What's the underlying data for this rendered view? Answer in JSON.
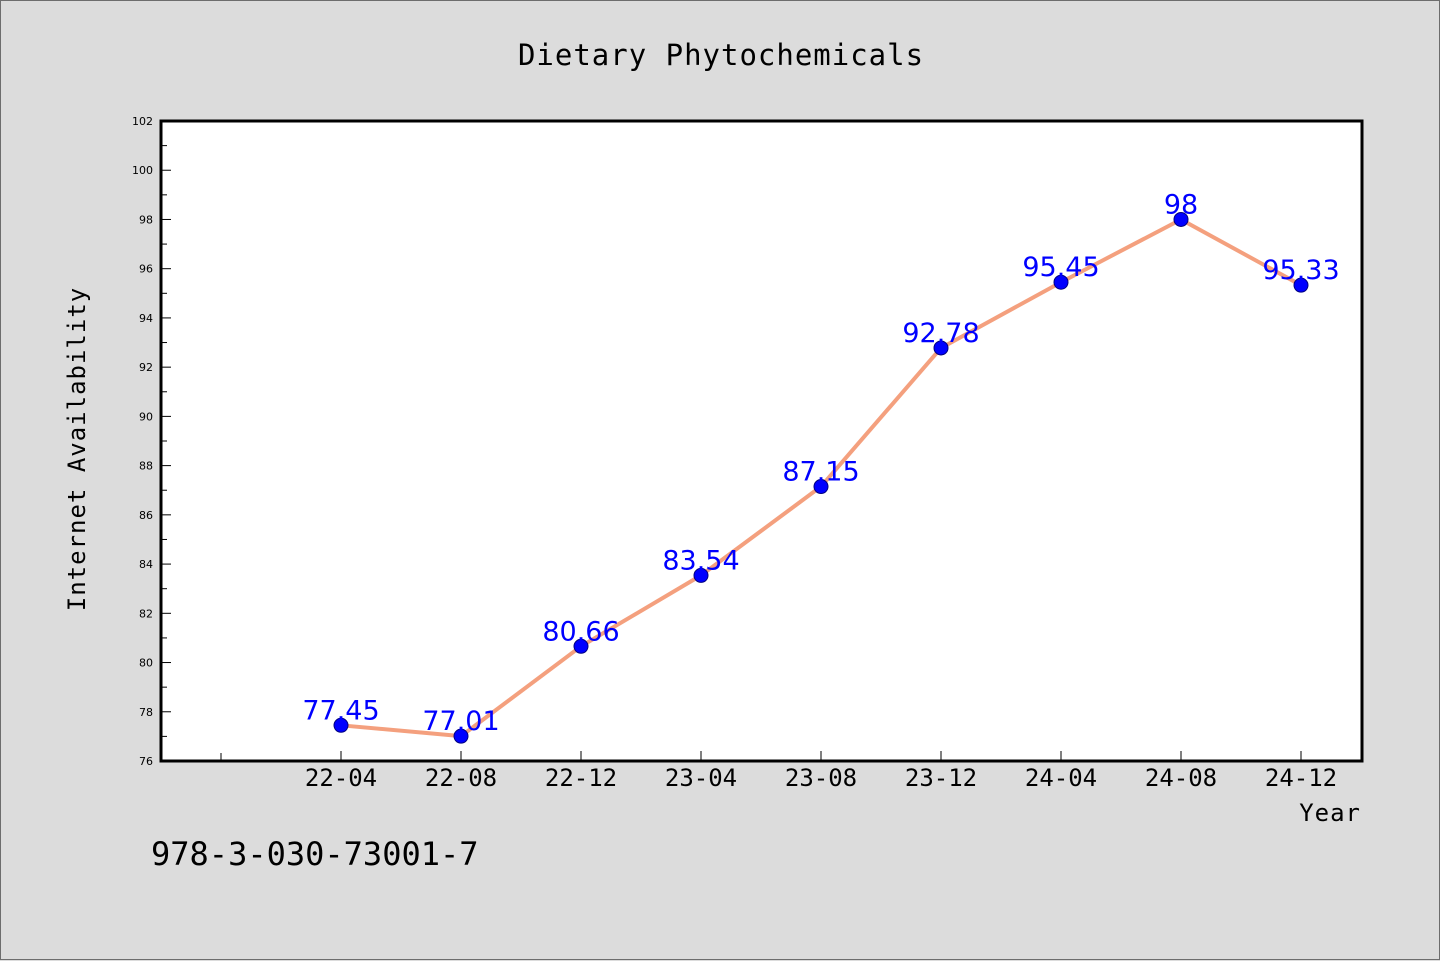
{
  "colors": {
    "background": "#dcdcdc",
    "plot_background": "#ffffff",
    "line": "#f4a07e",
    "marker_fill": "#0000ff",
    "marker_edge": "#000080",
    "data_label": "#0000ff"
  },
  "footer": {
    "isbn": "978-3-030-73001-7"
  },
  "chart_data": {
    "type": "line",
    "title": "Dietary Phytochemicals",
    "xlabel": "Year",
    "ylabel": "Internet Availability",
    "categories": [
      "22-04",
      "22-08",
      "22-12",
      "23-04",
      "23-08",
      "23-12",
      "24-04",
      "24-08",
      "24-12"
    ],
    "series": [
      {
        "values": [
          77.45,
          77.01,
          80.66,
          83.54,
          87.15,
          92.78,
          95.45,
          98,
          95.33
        ]
      }
    ],
    "data_labels": [
      "77.45",
      "77.01",
      "80.66",
      "83.54",
      "87.15",
      "92.78",
      "95.45",
      "98",
      "95.33"
    ],
    "ylim": [
      76,
      102
    ],
    "yticks": [
      76,
      78,
      80,
      82,
      84,
      86,
      88,
      90,
      92,
      94,
      96,
      98,
      100,
      102
    ],
    "grid": false,
    "legend": "none"
  }
}
